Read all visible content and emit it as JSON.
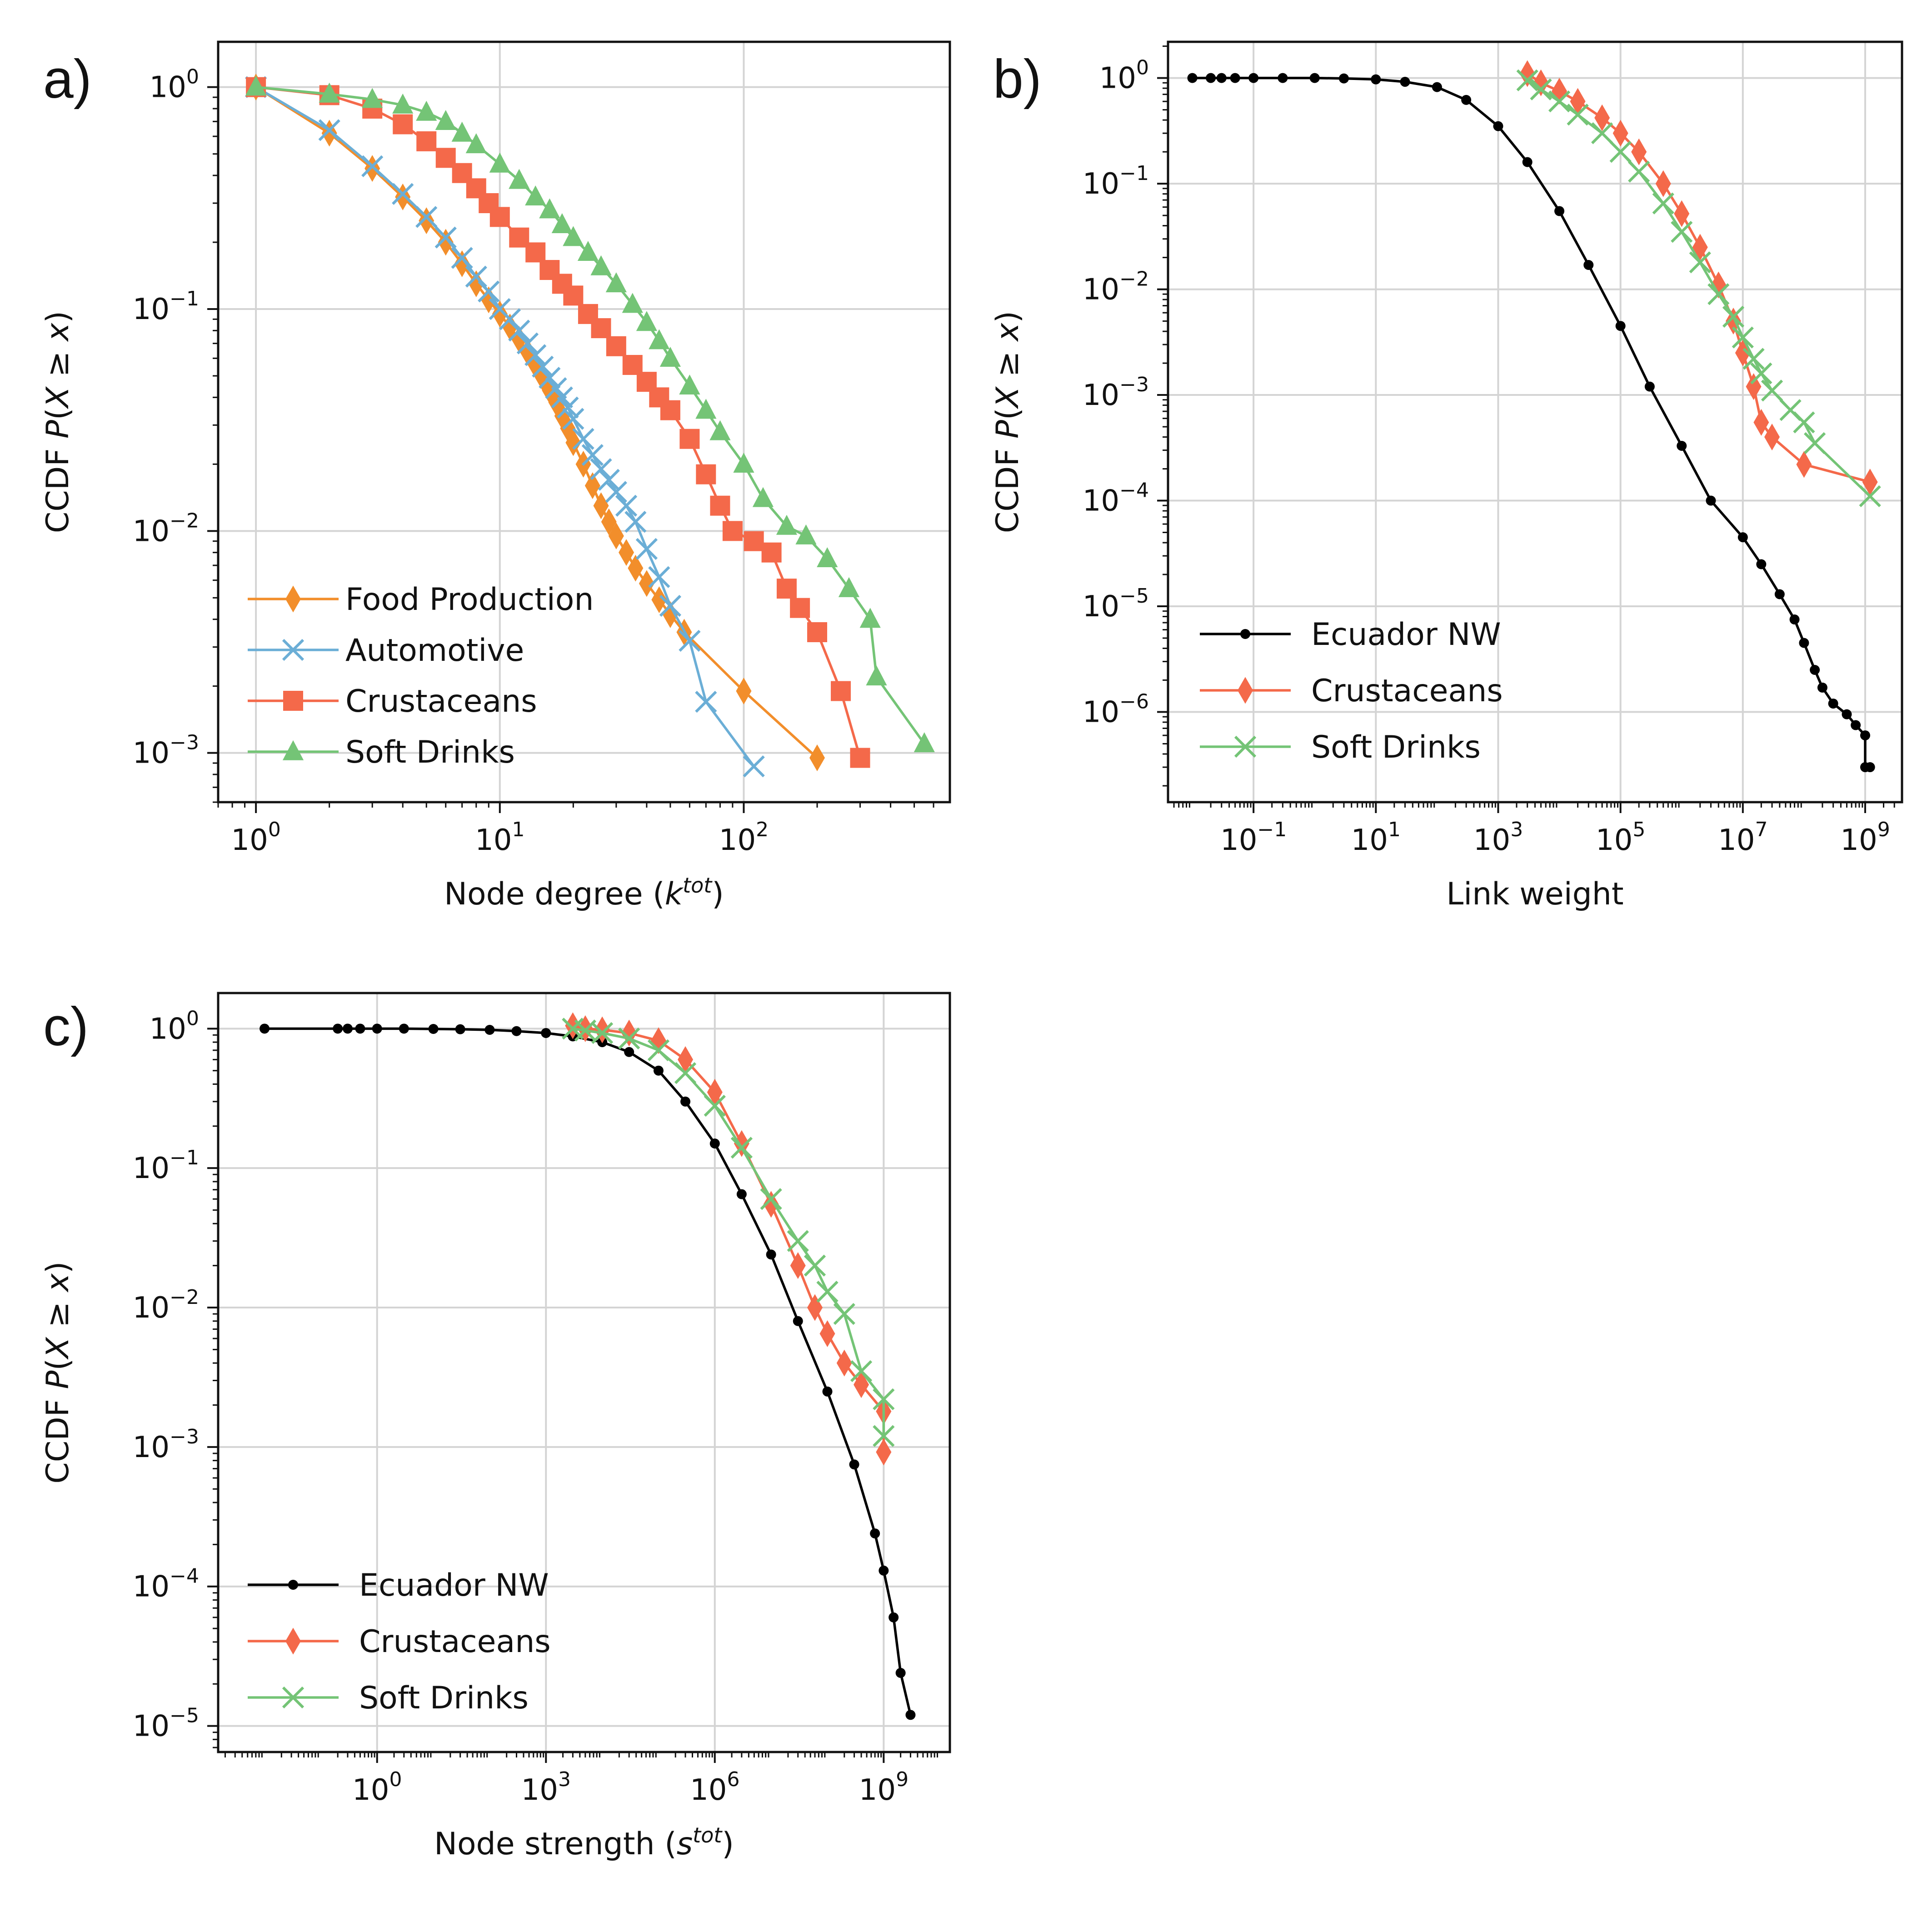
{
  "figure": {
    "panels": [
      "a)",
      "b)",
      "c)"
    ]
  },
  "chart_data": [
    {
      "id": "a",
      "panel_label": "a)",
      "type": "line",
      "scale": "log-log",
      "xlabel": "Node degree (k^tot)",
      "ylabel": "CCDF P(X ≥ x)",
      "xlim": [
        0.7,
        700
      ],
      "ylim": [
        0.0006,
        1.6
      ],
      "grid": true,
      "legend_position": "lower-left",
      "x_ticks": [
        {
          "base": "10",
          "exp": "0",
          "value": 1
        },
        {
          "base": "10",
          "exp": "1",
          "value": 10
        },
        {
          "base": "10",
          "exp": "2",
          "value": 100
        }
      ],
      "y_ticks": [
        {
          "base": "10",
          "exp": "0",
          "value": 1
        },
        {
          "base": "10",
          "exp": "−1",
          "value": 0.1
        },
        {
          "base": "10",
          "exp": "−2",
          "value": 0.01
        },
        {
          "base": "10",
          "exp": "−3",
          "value": 0.001
        }
      ],
      "series": [
        {
          "name": "Food Production",
          "color": "#f28e2b",
          "marker": "diamond",
          "x": [
            1,
            2,
            3,
            4,
            5,
            6,
            7,
            8,
            9,
            10,
            11,
            12,
            13,
            14,
            15,
            16,
            17,
            18,
            19,
            20,
            22,
            24,
            26,
            28,
            30,
            33,
            36,
            40,
            45,
            50,
            57,
            100,
            200
          ],
          "y": [
            1,
            0.62,
            0.43,
            0.32,
            0.25,
            0.2,
            0.16,
            0.13,
            0.11,
            0.095,
            0.083,
            0.073,
            0.064,
            0.056,
            0.049,
            0.043,
            0.038,
            0.033,
            0.029,
            0.025,
            0.02,
            0.016,
            0.013,
            0.011,
            0.0095,
            0.008,
            0.0068,
            0.0058,
            0.0049,
            0.0042,
            0.0035,
            0.0019,
            0.00095
          ]
        },
        {
          "name": "Automotive",
          "color": "#6baed6",
          "marker": "x",
          "x": [
            1,
            2,
            3,
            4,
            5,
            6,
            7,
            8,
            9,
            10,
            11,
            12,
            13,
            14,
            15,
            16,
            17,
            18,
            19,
            20,
            22,
            24,
            26,
            28,
            30,
            33,
            36,
            40,
            45,
            50,
            60,
            70,
            110
          ],
          "y": [
            1,
            0.64,
            0.44,
            0.33,
            0.26,
            0.21,
            0.17,
            0.14,
            0.12,
            0.1,
            0.09,
            0.08,
            0.07,
            0.062,
            0.055,
            0.049,
            0.044,
            0.04,
            0.036,
            0.032,
            0.026,
            0.022,
            0.019,
            0.017,
            0.015,
            0.013,
            0.011,
            0.0083,
            0.0062,
            0.0046,
            0.0032,
            0.0017,
            0.00087
          ]
        },
        {
          "name": "Crustaceans",
          "color": "#f4694a",
          "marker": "square",
          "x": [
            1,
            2,
            3,
            4,
            5,
            6,
            7,
            8,
            9,
            10,
            12,
            14,
            16,
            18,
            20,
            23,
            26,
            30,
            35,
            40,
            45,
            50,
            60,
            70,
            80,
            90,
            110,
            130,
            150,
            170,
            200,
            250,
            300
          ],
          "y": [
            1,
            0.92,
            0.8,
            0.68,
            0.57,
            0.48,
            0.41,
            0.35,
            0.3,
            0.26,
            0.21,
            0.18,
            0.15,
            0.13,
            0.115,
            0.095,
            0.082,
            0.068,
            0.056,
            0.047,
            0.04,
            0.035,
            0.026,
            0.018,
            0.013,
            0.01,
            0.009,
            0.008,
            0.0055,
            0.0045,
            0.0035,
            0.0019,
            0.00095
          ]
        },
        {
          "name": "Soft Drinks",
          "color": "#74c476",
          "marker": "triangle",
          "x": [
            1,
            2,
            3,
            4,
            5,
            6,
            7,
            8,
            10,
            12,
            14,
            16,
            18,
            20,
            23,
            26,
            30,
            35,
            40,
            45,
            50,
            60,
            70,
            80,
            100,
            120,
            150,
            180,
            220,
            270,
            330,
            350,
            550
          ],
          "y": [
            1,
            0.93,
            0.88,
            0.83,
            0.77,
            0.7,
            0.62,
            0.55,
            0.45,
            0.38,
            0.32,
            0.28,
            0.24,
            0.21,
            0.18,
            0.155,
            0.13,
            0.105,
            0.087,
            0.072,
            0.06,
            0.045,
            0.035,
            0.028,
            0.02,
            0.014,
            0.0105,
            0.0095,
            0.0075,
            0.0055,
            0.004,
            0.0022,
            0.0011
          ]
        }
      ]
    },
    {
      "id": "b",
      "panel_label": "b)",
      "type": "line",
      "scale": "log-log",
      "xlabel": "Link weight",
      "ylabel": "CCDF P(X ≥ x)",
      "xlim": [
        0.004,
        4000000000.0
      ],
      "ylim": [
        1.4e-07,
        2.2
      ],
      "grid": true,
      "legend_position": "lower-left",
      "x_ticks": [
        {
          "base": "10",
          "exp": "−1",
          "value": 0.1
        },
        {
          "base": "10",
          "exp": "1",
          "value": 10
        },
        {
          "base": "10",
          "exp": "3",
          "value": 1000
        },
        {
          "base": "10",
          "exp": "5",
          "value": 100000
        },
        {
          "base": "10",
          "exp": "7",
          "value": 10000000
        },
        {
          "base": "10",
          "exp": "9",
          "value": 1000000000
        }
      ],
      "y_ticks": [
        {
          "base": "10",
          "exp": "0",
          "value": 1
        },
        {
          "base": "10",
          "exp": "−1",
          "value": 0.1
        },
        {
          "base": "10",
          "exp": "−2",
          "value": 0.01
        },
        {
          "base": "10",
          "exp": "−3",
          "value": 0.001
        },
        {
          "base": "10",
          "exp": "−4",
          "value": 0.0001
        },
        {
          "base": "10",
          "exp": "−5",
          "value": 1e-05
        },
        {
          "base": "10",
          "exp": "−6",
          "value": 1e-06
        }
      ],
      "series": [
        {
          "name": "Ecuador NW",
          "color": "#000000",
          "marker": "dot",
          "x": [
            0.01,
            0.02,
            0.03,
            0.05,
            0.1,
            0.3,
            1,
            3,
            10,
            30,
            100,
            300,
            1000,
            3000,
            10000,
            30000,
            100000,
            300000,
            1000000,
            3000000,
            10000000,
            20000000,
            40000000,
            70000000,
            100000000,
            150000000,
            200000000,
            300000000,
            500000000,
            700000000,
            1000000000,
            1000000000,
            1200000000
          ],
          "y": [
            1,
            1,
            1,
            1,
            1,
            1,
            1,
            0.99,
            0.97,
            0.92,
            0.82,
            0.62,
            0.35,
            0.16,
            0.055,
            0.017,
            0.0045,
            0.0012,
            0.00033,
            0.0001,
            4.5e-05,
            2.5e-05,
            1.3e-05,
            7.5e-06,
            4.5e-06,
            2.5e-06,
            1.7e-06,
            1.2e-06,
            9.5e-07,
            7.5e-07,
            6e-07,
            3e-07,
            3e-07
          ]
        },
        {
          "name": "Crustaceans",
          "color": "#f4694a",
          "marker": "diamond",
          "x": [
            3000,
            5000,
            10000,
            20000,
            50000,
            100000,
            200000,
            500000,
            1000000,
            2000000,
            4000000,
            7000000,
            10000000,
            15000000,
            20000000,
            30000000,
            100000000,
            1200000000
          ],
          "y": [
            1.1,
            0.9,
            0.75,
            0.6,
            0.42,
            0.3,
            0.2,
            0.1,
            0.052,
            0.025,
            0.011,
            0.005,
            0.0025,
            0.0012,
            0.00055,
            0.0004,
            0.00022,
            0.00015
          ]
        },
        {
          "name": "Soft Drinks",
          "color": "#74c476",
          "marker": "x",
          "x": [
            3000,
            5000,
            10000,
            20000,
            50000,
            100000,
            200000,
            500000,
            1000000,
            2000000,
            4000000,
            7000000,
            10000000,
            15000000,
            20000000,
            30000000,
            60000000,
            100000000,
            150000000,
            1200000000
          ],
          "y": [
            0.95,
            0.78,
            0.6,
            0.45,
            0.3,
            0.2,
            0.13,
            0.065,
            0.035,
            0.018,
            0.009,
            0.0055,
            0.0035,
            0.0022,
            0.0016,
            0.0011,
            0.00072,
            0.00055,
            0.00035,
            0.00011
          ]
        }
      ]
    },
    {
      "id": "c",
      "panel_label": "c)",
      "type": "line",
      "scale": "log-log",
      "xlabel": "Node strength (s^tot)",
      "ylabel": "CCDF P(X ≥ x)",
      "xlim": [
        0.0015,
        15000000000.0
      ],
      "ylim": [
        6.5e-06,
        1.8
      ],
      "grid": true,
      "legend_position": "lower-left",
      "x_ticks": [
        {
          "base": "10",
          "exp": "0",
          "value": 1
        },
        {
          "base": "10",
          "exp": "3",
          "value": 1000
        },
        {
          "base": "10",
          "exp": "6",
          "value": 1000000
        },
        {
          "base": "10",
          "exp": "9",
          "value": 1000000000
        }
      ],
      "y_ticks": [
        {
          "base": "10",
          "exp": "0",
          "value": 1
        },
        {
          "base": "10",
          "exp": "−1",
          "value": 0.1
        },
        {
          "base": "10",
          "exp": "−2",
          "value": 0.01
        },
        {
          "base": "10",
          "exp": "−3",
          "value": 0.001
        },
        {
          "base": "10",
          "exp": "−4",
          "value": 0.0001
        },
        {
          "base": "10",
          "exp": "−5",
          "value": 1e-05
        }
      ],
      "series": [
        {
          "name": "Ecuador NW",
          "color": "#000000",
          "marker": "dot",
          "x": [
            0.01,
            0.2,
            0.3,
            0.5,
            1,
            3,
            10,
            30,
            100,
            300,
            1000,
            3000,
            10000,
            30000,
            100000,
            300000,
            1000000,
            3000000,
            10000000,
            30000000,
            100000000,
            300000000,
            700000000,
            1000000000,
            1500000000,
            2000000000,
            3000000000
          ],
          "y": [
            1,
            1,
            1,
            1,
            1,
            1,
            0.995,
            0.99,
            0.98,
            0.96,
            0.93,
            0.88,
            0.8,
            0.68,
            0.5,
            0.3,
            0.15,
            0.065,
            0.024,
            0.008,
            0.0025,
            0.00075,
            0.00024,
            0.00013,
            6e-05,
            2.4e-05,
            1.2e-05
          ]
        },
        {
          "name": "Crustaceans",
          "color": "#f4694a",
          "marker": "diamond",
          "x": [
            3000,
            5000,
            10000,
            30000,
            100000,
            300000,
            1000000,
            3000000,
            10000000,
            30000000,
            60000000,
            100000000,
            200000000,
            400000000,
            1000000000,
            1000000000
          ],
          "y": [
            1.05,
            1.0,
            0.98,
            0.93,
            0.82,
            0.6,
            0.35,
            0.15,
            0.055,
            0.02,
            0.01,
            0.0065,
            0.004,
            0.0028,
            0.0018,
            0.00092
          ]
        },
        {
          "name": "Soft Drinks",
          "color": "#74c476",
          "marker": "x",
          "x": [
            3000,
            5000,
            10000,
            30000,
            100000,
            300000,
            1000000,
            3000000,
            10000000,
            30000000,
            60000000,
            100000000,
            200000000,
            400000000,
            1000000000,
            1000000000
          ],
          "y": [
            1.0,
            0.97,
            0.93,
            0.85,
            0.7,
            0.48,
            0.28,
            0.14,
            0.06,
            0.03,
            0.02,
            0.013,
            0.009,
            0.0035,
            0.0022,
            0.0012
          ]
        }
      ]
    }
  ]
}
